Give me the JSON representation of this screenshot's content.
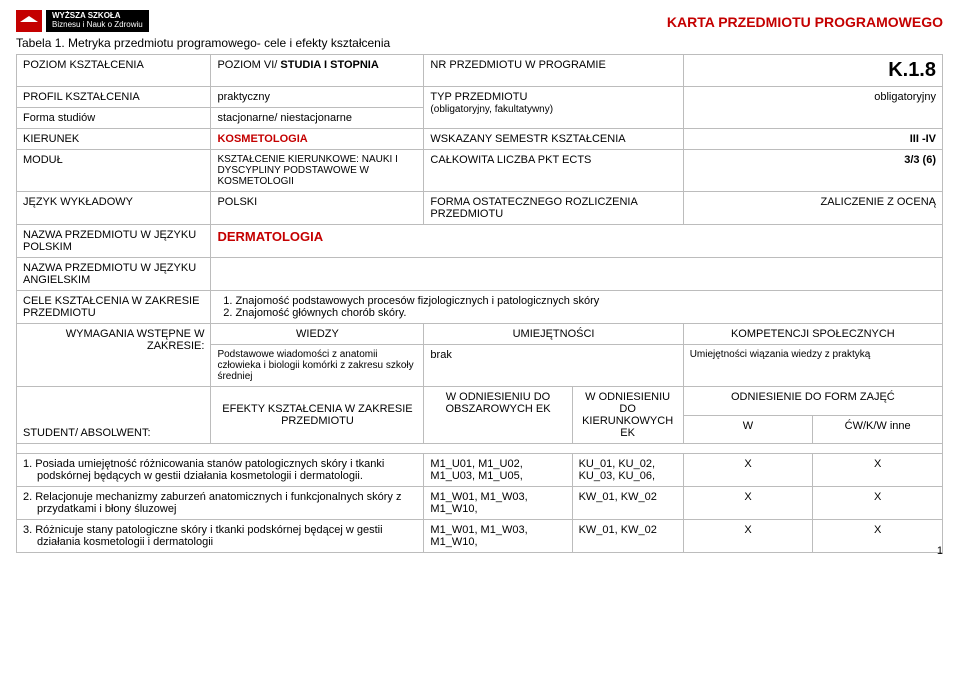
{
  "logo": {
    "line1": "WYŻSZA SZKOŁA",
    "line2": "Biznesu i Nauk o Zdrowiu"
  },
  "karta_title": "KARTA PRZEDMIOTU PROGRAMOWEGO",
  "table_title_plain": "Tabela 1. Metryka przedmiotu programowego- cele i efekty kształcenia",
  "r1": {
    "a": "POZIOM KSZTAŁCENIA",
    "b_plain": "POZIOM VI/ ",
    "b_bold": "STUDIA I STOPNIA",
    "c": "NR PRZEDMIOTU W PROGRAMIE",
    "d": "K.1.8"
  },
  "r2": {
    "a": "PROFIL KSZTAŁCENIA",
    "b": "praktyczny",
    "c": "TYP PRZEDMIOTU",
    "c2": "(obligatoryjny, fakultatywny)",
    "d": "obligatoryjny"
  },
  "r3": {
    "a": "Forma studiów",
    "b": "stacjonarne/ niestacjonarne"
  },
  "r4": {
    "a": "KIERUNEK",
    "b": "KOSMETOLOGIA",
    "c": "WSKAZANY SEMESTR KSZTAŁCENIA",
    "d": "III -IV"
  },
  "r5": {
    "a": "MODUŁ",
    "b": "KSZTAŁCENIE KIERUNKOWE: NAUKI I DYSCYPLINY PODSTAWOWE W KOSMETOLOGII",
    "c": "CAŁKOWITA LICZBA PKT ECTS",
    "d": "3/3 (6)"
  },
  "r6": {
    "a": "JĘZYK WYKŁADOWY",
    "b": "POLSKI",
    "c": "FORMA OSTATECZNEGO ROZLICZENIA PRZEDMIOTU",
    "d": "ZALICZENIE Z OCENĄ"
  },
  "r7": {
    "a": "NAZWA PRZEDMIOTU W JĘZYKU POLSKIM",
    "b": "DERMATOLOGIA"
  },
  "r8": {
    "a": "NAZWA PRZEDMIOTU W JĘZYKU ANGIELSKIM"
  },
  "r9": {
    "a": "CELE KSZTAŁCENIA W ZAKRESIE PRZEDMIOTU",
    "b1": "Znajomość podstawowych procesów fizjologicznych i patologicznych skóry",
    "b2": "Znajomość głównych chorób skóry."
  },
  "r10": {
    "a": "WYMAGANIA WSTĘPNE W ZAKRESIE:",
    "h1": "WIEDZY",
    "h2": "UMIEJĘTNOŚCI",
    "h3": "KOMPETENCJI SPOŁECZNYCH"
  },
  "r11": {
    "b": "Podstawowe wiadomości z anatomii człowieka i biologii komórki z zakresu szkoły średniej",
    "c": "brak",
    "d": "Umiejętności wiązania wiedzy z praktyką"
  },
  "r12": {
    "a": "STUDENT/ ABSOLWENT:",
    "b": "EFEKTY KSZTAŁCENIA W ZAKRESIE PRZEDMIOTU",
    "c": "W ODNIESIENIU DO OBSZAROWYCH EK",
    "d": "W ODNIESIENIU DO KIERUNKOWYCH EK",
    "e": "ODNIESIENIE DO FORM ZAJĘĆ",
    "f": "W",
    "g": "ĆW/K/W inne"
  },
  "body_rows": [
    {
      "n": "1.",
      "txt": "Posiada umiejętność różnicowania stanów patologicznych skóry i tkanki podskórnej będących w gestii działania kosmetologii i dermatologii.",
      "c": "M1_U01, M1_U02, M1_U03, M1_U05,",
      "d": "KU_01, KU_02, KU_03, KU_06,",
      "w": "X",
      "cw": "X"
    },
    {
      "n": "2.",
      "txt": "Relacjonuje mechanizmy zaburzeń anatomicznych i funkcjonalnych skóry z przydatkami i błony śluzowej",
      "c": "M1_W01, M1_W03, M1_W10,",
      "d": "KW_01, KW_02",
      "w": "X",
      "cw": "X"
    },
    {
      "n": "3.",
      "txt": "Różnicuje stany patologiczne skóry i tkanki podskórnej będącej w gestii działania kosmetologii i dermatologii",
      "c": "M1_W01, M1_W03, M1_W10,",
      "d": "KW_01, KW_02",
      "w": "X",
      "cw": "X"
    }
  ],
  "page_num": "1"
}
